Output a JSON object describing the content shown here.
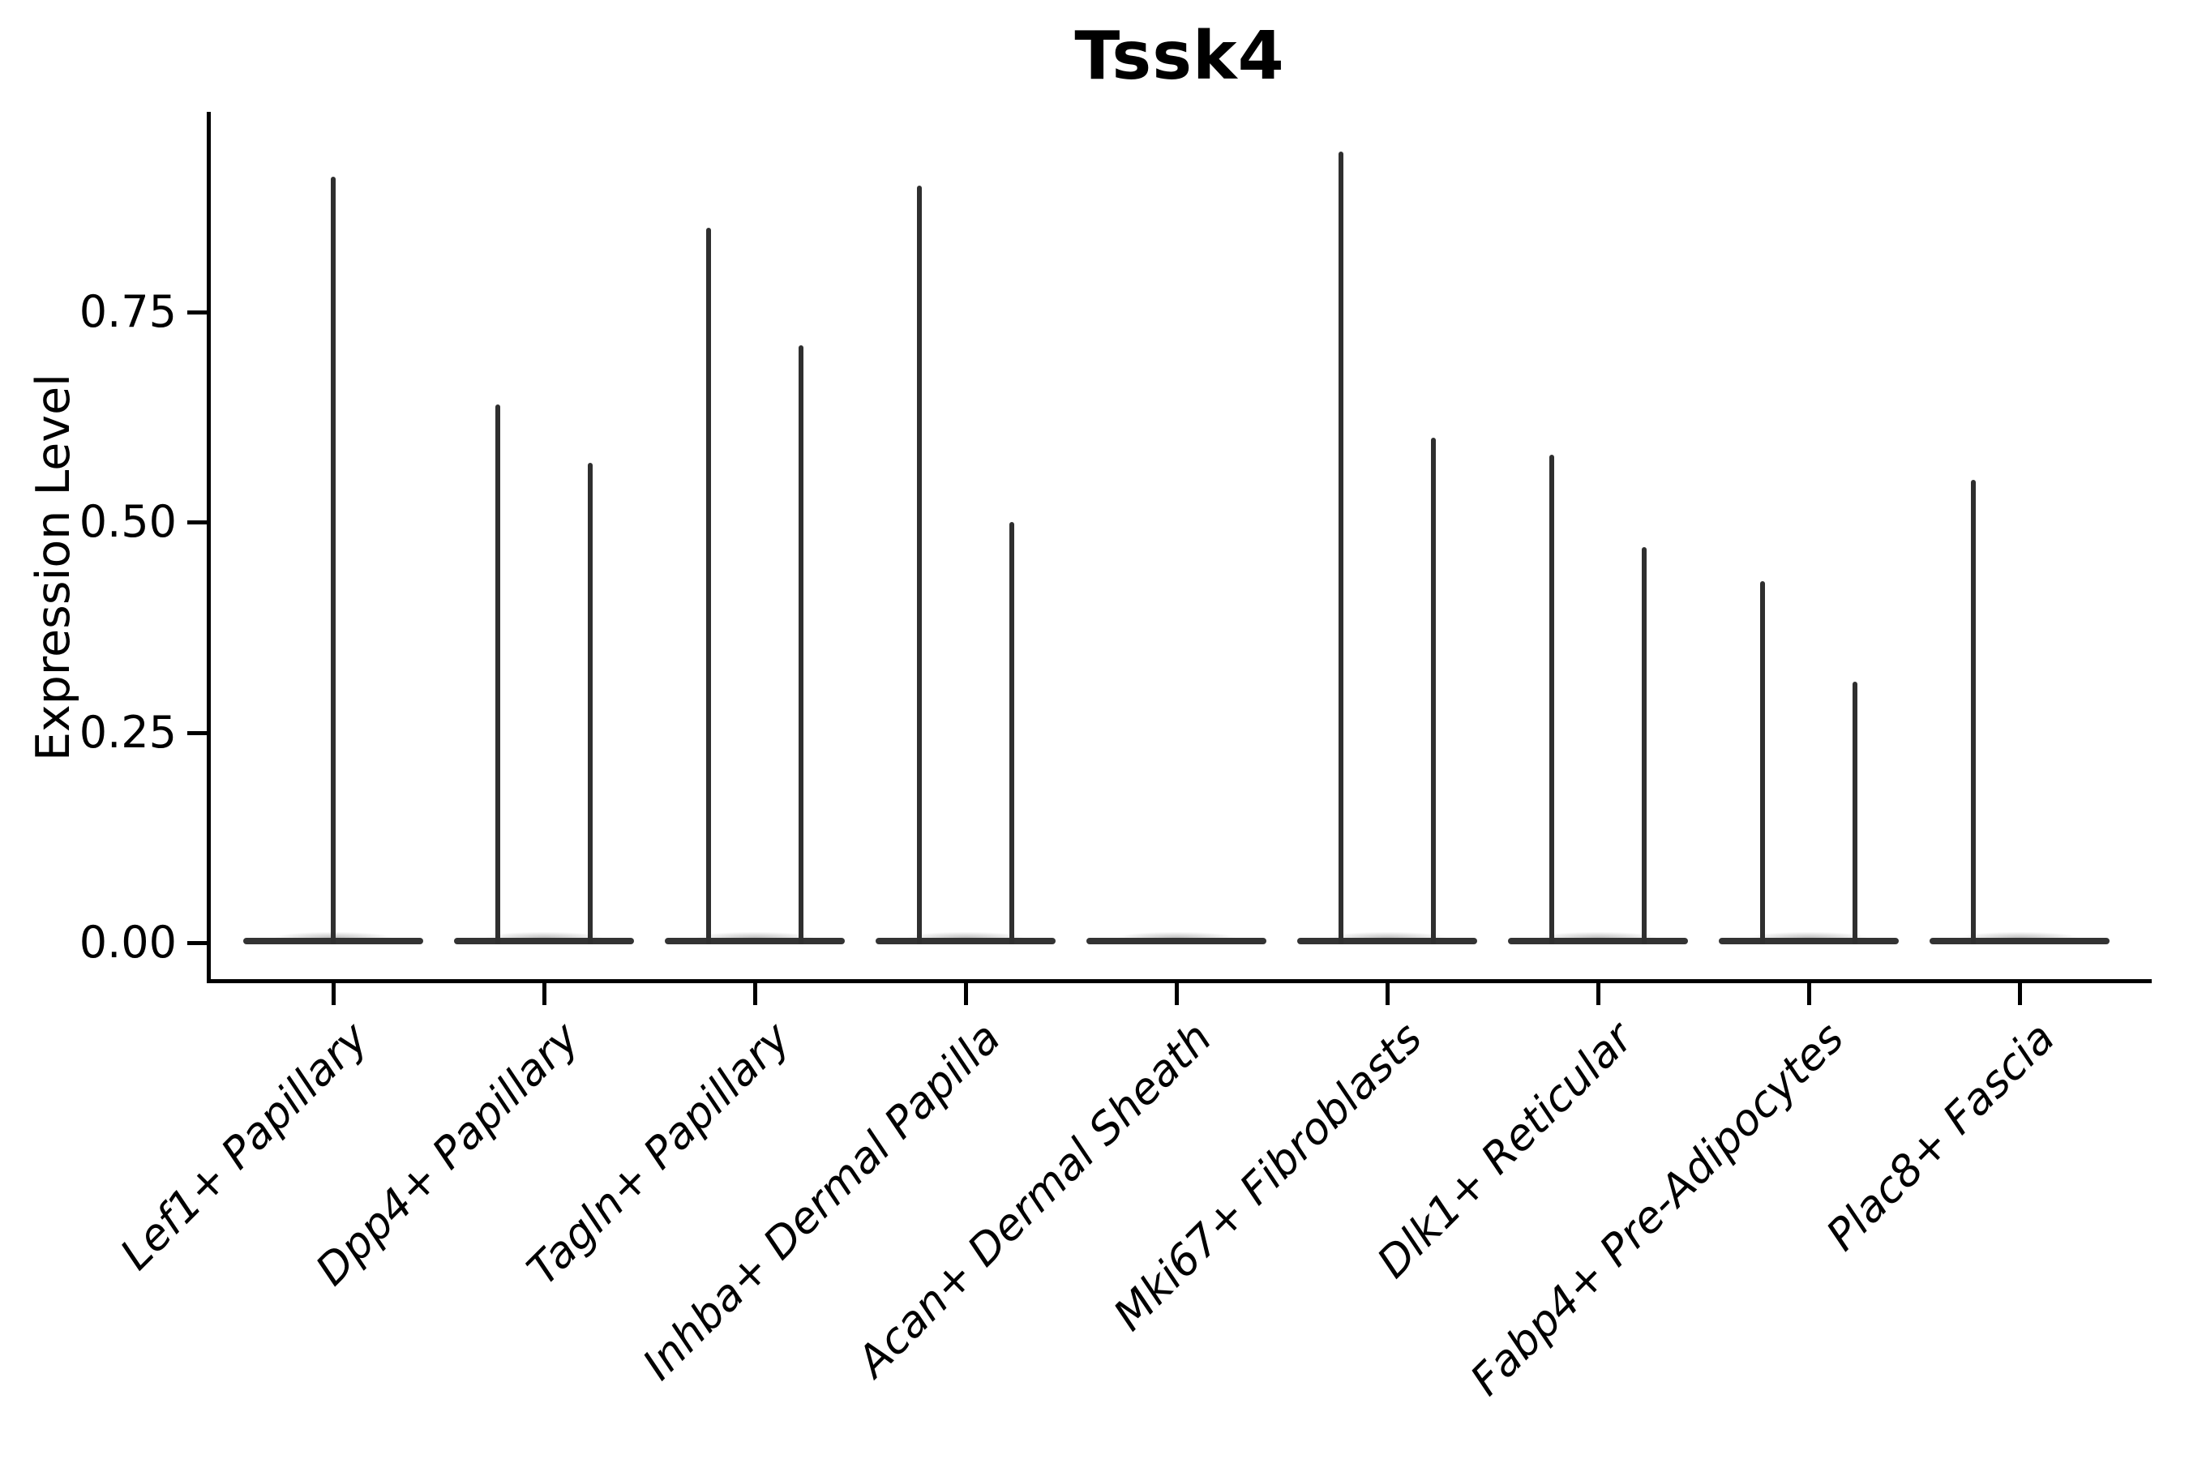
{
  "chart_data": {
    "type": "violin",
    "title": "Tssk4",
    "ylabel": "Expression Level",
    "xlabel": "",
    "ylim": [
      0,
      0.99
    ],
    "yticks": [
      0.0,
      0.25,
      0.5,
      0.75
    ],
    "ytick_labels": [
      "0.00",
      "0.25",
      "0.50",
      "0.75"
    ],
    "grid": false,
    "legend_position": "none",
    "colors": {
      "violin_outline": "#333333",
      "spike": "#2f2f2f",
      "axis": "#000000",
      "text": "#000000",
      "background": "#ffffff"
    },
    "categories": [
      "Lef1+ Papillary",
      "Dpp4+ Papillary",
      "Tagln+ Papillary",
      "Inhba+ Dermal Papilla",
      "Acan+ Dermal Sheath",
      "Mki67+ Fibroblasts",
      "Dlk1+ Reticular",
      "Fabp4+ Pre-Adipocytes",
      "Plac8+ Fascia"
    ],
    "violins": [
      {
        "label": "Lef1+ Papillary",
        "baseline_at_zero": true,
        "spikes": [
          {
            "position": "center",
            "max": 0.91
          }
        ]
      },
      {
        "label": "Dpp4+ Papillary",
        "baseline_at_zero": true,
        "spikes": [
          {
            "position": "left",
            "max": 0.64
          },
          {
            "position": "right",
            "max": 0.57
          }
        ]
      },
      {
        "label": "Tagln+ Papillary",
        "baseline_at_zero": true,
        "spikes": [
          {
            "position": "left",
            "max": 0.85
          },
          {
            "position": "right",
            "max": 0.71
          }
        ]
      },
      {
        "label": "Inhba+ Dermal Papilla",
        "baseline_at_zero": true,
        "spikes": [
          {
            "position": "left",
            "max": 0.9
          },
          {
            "position": "right",
            "max": 0.5
          }
        ]
      },
      {
        "label": "Acan+ Dermal Sheath",
        "baseline_at_zero": true,
        "spikes": []
      },
      {
        "label": "Mki67+ Fibroblasts",
        "baseline_at_zero": true,
        "spikes": [
          {
            "position": "left",
            "max": 0.94
          },
          {
            "position": "right",
            "max": 0.6
          }
        ]
      },
      {
        "label": "Dlk1+ Reticular",
        "baseline_at_zero": true,
        "spikes": [
          {
            "position": "left",
            "max": 0.58
          },
          {
            "position": "right",
            "max": 0.47
          }
        ]
      },
      {
        "label": "Fabp4+ Pre-Adipocytes",
        "baseline_at_zero": true,
        "spikes": [
          {
            "position": "left",
            "max": 0.43
          },
          {
            "position": "right",
            "max": 0.31
          }
        ]
      },
      {
        "label": "Plac8+ Fascia",
        "baseline_at_zero": true,
        "spikes": [
          {
            "position": "left",
            "max": 0.55
          }
        ]
      }
    ]
  }
}
